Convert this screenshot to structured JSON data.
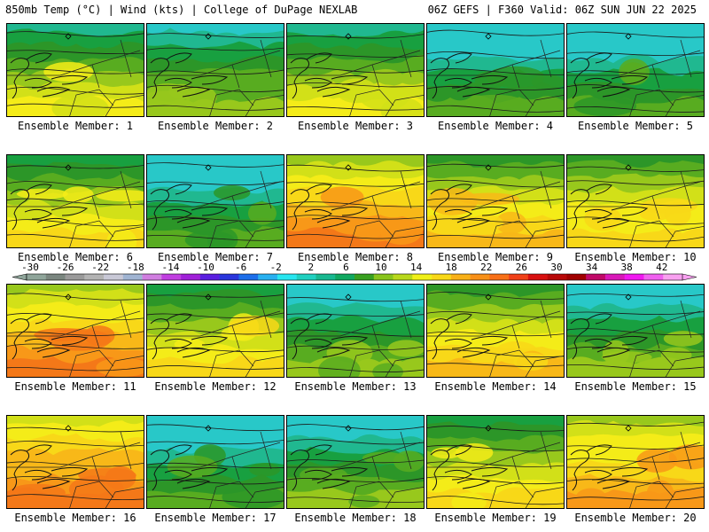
{
  "header": {
    "left": "850mb Temp (°C) | Wind (kts) | College of DuPage NEXLAB",
    "right": "06Z GEFS | F360 Valid: 06Z SUN JUN 22 2025"
  },
  "colorbar": {
    "labels": [
      "-30",
      "-26",
      "-22",
      "-18",
      "-14",
      "-10",
      "-6",
      "-2",
      "2",
      "6",
      "10",
      "14",
      "18",
      "22",
      "26",
      "30",
      "34",
      "38",
      "42"
    ],
    "colors": [
      "#8fa59a",
      "#7a867f",
      "#9a9a9a",
      "#b3b3b3",
      "#c8c8d6",
      "#a0b4d2",
      "#d07ee0",
      "#c03ee0",
      "#a020d8",
      "#5a1ee0",
      "#2a36dc",
      "#1c6eea",
      "#28b0f0",
      "#28e6f0",
      "#20d0c0",
      "#18b890",
      "#10a860",
      "#38a020",
      "#88c41c",
      "#b8d81c",
      "#f0f018",
      "#f8d818",
      "#f8b018",
      "#f89018",
      "#f87018",
      "#f04018",
      "#d81010",
      "#b80808",
      "#a00000",
      "#c00868",
      "#d818b8",
      "#f018f0",
      "#f060f0",
      "#f8a0f0"
    ]
  },
  "members": [
    {
      "label": "Ensemble Member: 1",
      "warmth": 0.35
    },
    {
      "label": "Ensemble Member: 2",
      "warmth": 0.22
    },
    {
      "label": "Ensemble Member: 3",
      "warmth": 0.32
    },
    {
      "label": "Ensemble Member: 4",
      "warmth": 0.1
    },
    {
      "label": "Ensemble Member: 5",
      "warmth": 0.12
    },
    {
      "label": "Ensemble Member: 6",
      "warmth": 0.38
    },
    {
      "label": "Ensemble Member: 7",
      "warmth": 0.08
    },
    {
      "label": "Ensemble Member: 8",
      "warmth": 0.62
    },
    {
      "label": "Ensemble Member: 9",
      "warmth": 0.5
    },
    {
      "label": "Ensemble Member: 10",
      "warmth": 0.45
    },
    {
      "label": "Ensemble Member: 11",
      "warmth": 0.66
    },
    {
      "label": "Ensemble Member: 12",
      "warmth": 0.4
    },
    {
      "label": "Ensemble Member: 13",
      "warmth": 0.18
    },
    {
      "label": "Ensemble Member: 14",
      "warmth": 0.5
    },
    {
      "label": "Ensemble Member: 15",
      "warmth": 0.2
    },
    {
      "label": "Ensemble Member: 16",
      "warmth": 0.68
    },
    {
      "label": "Ensemble Member: 17",
      "warmth": 0.1
    },
    {
      "label": "Ensemble Member: 18",
      "warmth": 0.15
    },
    {
      "label": "Ensemble Member: 19",
      "warmth": 0.4
    },
    {
      "label": "Ensemble Member: 20",
      "warmth": 0.6
    }
  ]
}
